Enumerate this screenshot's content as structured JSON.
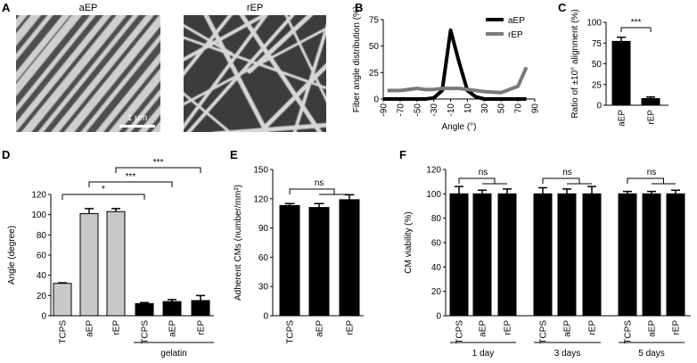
{
  "panels": {
    "A": {
      "letter": "A",
      "left_label": "aEP",
      "right_label": "rEP",
      "scale_bar": "1 μm"
    },
    "B": {
      "letter": "B"
    },
    "C": {
      "letter": "C"
    },
    "D": {
      "letter": "D",
      "group_label": "gelatin"
    },
    "E": {
      "letter": "E"
    },
    "F": {
      "letter": "F",
      "groups": [
        "1 day",
        "3 days",
        "5 days"
      ]
    }
  },
  "colors": {
    "black": "#000000",
    "grey": "#7a7a7a",
    "light_grey": "#c8c8c8",
    "image_bg": "#5a5a5a",
    "fiber": "#d4d4d4"
  },
  "chart_data": [
    {
      "id": "B",
      "type": "line",
      "xlabel": "Angle (°)",
      "ylabel": "Fiber angle distribution (%)",
      "x": [
        -90,
        -70,
        -50,
        -30,
        -10,
        10,
        30,
        50,
        70,
        90
      ],
      "xticks": [
        "-90",
        "-70",
        "-50",
        "-30",
        "-10",
        "10",
        "30",
        "50",
        "70",
        "90"
      ],
      "yticks": [
        0,
        25,
        50,
        75
      ],
      "ylim": [
        0,
        75
      ],
      "legend_position": "top-right",
      "series": [
        {
          "name": "aEP",
          "color": "#000000",
          "x": [
            -90,
            -70,
            -50,
            -40,
            -30,
            -20,
            -10,
            0,
            10,
            20,
            30,
            50,
            70,
            80
          ],
          "values": [
            0,
            0,
            0,
            0,
            1,
            8,
            65,
            35,
            8,
            2,
            0,
            0,
            0,
            0
          ]
        },
        {
          "name": "rEP",
          "color": "#7a7a7a",
          "x": [
            -85,
            -70,
            -50,
            -40,
            -30,
            -20,
            -10,
            0,
            10,
            20,
            30,
            50,
            70,
            80
          ],
          "values": [
            8,
            8,
            10,
            9,
            9,
            10,
            10,
            10,
            9,
            8,
            7,
            6,
            12,
            30
          ]
        }
      ]
    },
    {
      "id": "C",
      "type": "bar",
      "ylabel": "Ratio of ±10° alignment (%)",
      "categories": [
        "aEP",
        "rEP"
      ],
      "values": [
        77,
        8
      ],
      "errors": [
        5,
        2
      ],
      "yticks": [
        0,
        25,
        50,
        75,
        100
      ],
      "ylim": [
        0,
        100
      ],
      "significance": [
        {
          "from": 0,
          "to": 1,
          "label": "***"
        }
      ]
    },
    {
      "id": "D",
      "type": "bar",
      "ylabel": "Angle (degree)",
      "categories": [
        "TCPS",
        "aEP",
        "rEP",
        "TCPS",
        "aEP",
        "rEP"
      ],
      "values": [
        32,
        101,
        103,
        12,
        14,
        15
      ],
      "errors": [
        0.5,
        5,
        3,
        1,
        2,
        5
      ],
      "fills": [
        "#c8c8c8",
        "#c8c8c8",
        "#c8c8c8",
        "#000000",
        "#000000",
        "#000000"
      ],
      "yticks": [
        0,
        20,
        40,
        60,
        80,
        100,
        120
      ],
      "ylim": [
        0,
        120
      ],
      "significance": [
        {
          "from": 0,
          "to": 3,
          "label": "*"
        },
        {
          "from": 1,
          "to": 4,
          "label": "***"
        },
        {
          "from": 2,
          "to": 5,
          "label": "***"
        }
      ]
    },
    {
      "id": "E",
      "type": "bar",
      "ylabel": "Adherent CMs (number/mm²)",
      "categories": [
        "TCPS",
        "aEP",
        "rEP"
      ],
      "values": [
        113,
        111,
        119
      ],
      "errors": [
        2,
        4,
        5
      ],
      "yticks": [
        0,
        30,
        60,
        90,
        120,
        150
      ],
      "ylim": [
        0,
        150
      ],
      "significance": [
        {
          "label": "ns"
        }
      ]
    },
    {
      "id": "F",
      "type": "bar",
      "ylabel": "CM viability (%)",
      "categories": [
        "TCPS",
        "aEP",
        "rEP",
        "TCPS",
        "aEP",
        "rEP",
        "TCPS",
        "aEP",
        "rEP"
      ],
      "values": [
        100,
        100,
        100,
        100,
        100,
        100,
        100,
        100,
        100
      ],
      "errors": [
        6,
        3,
        4,
        5,
        4,
        6,
        2,
        2,
        3
      ],
      "yticks": [
        0,
        20,
        40,
        60,
        80,
        100,
        120
      ],
      "ylim": [
        0,
        120
      ],
      "significance": [
        {
          "label": "ns"
        },
        {
          "label": "ns"
        },
        {
          "label": "ns"
        }
      ]
    }
  ]
}
